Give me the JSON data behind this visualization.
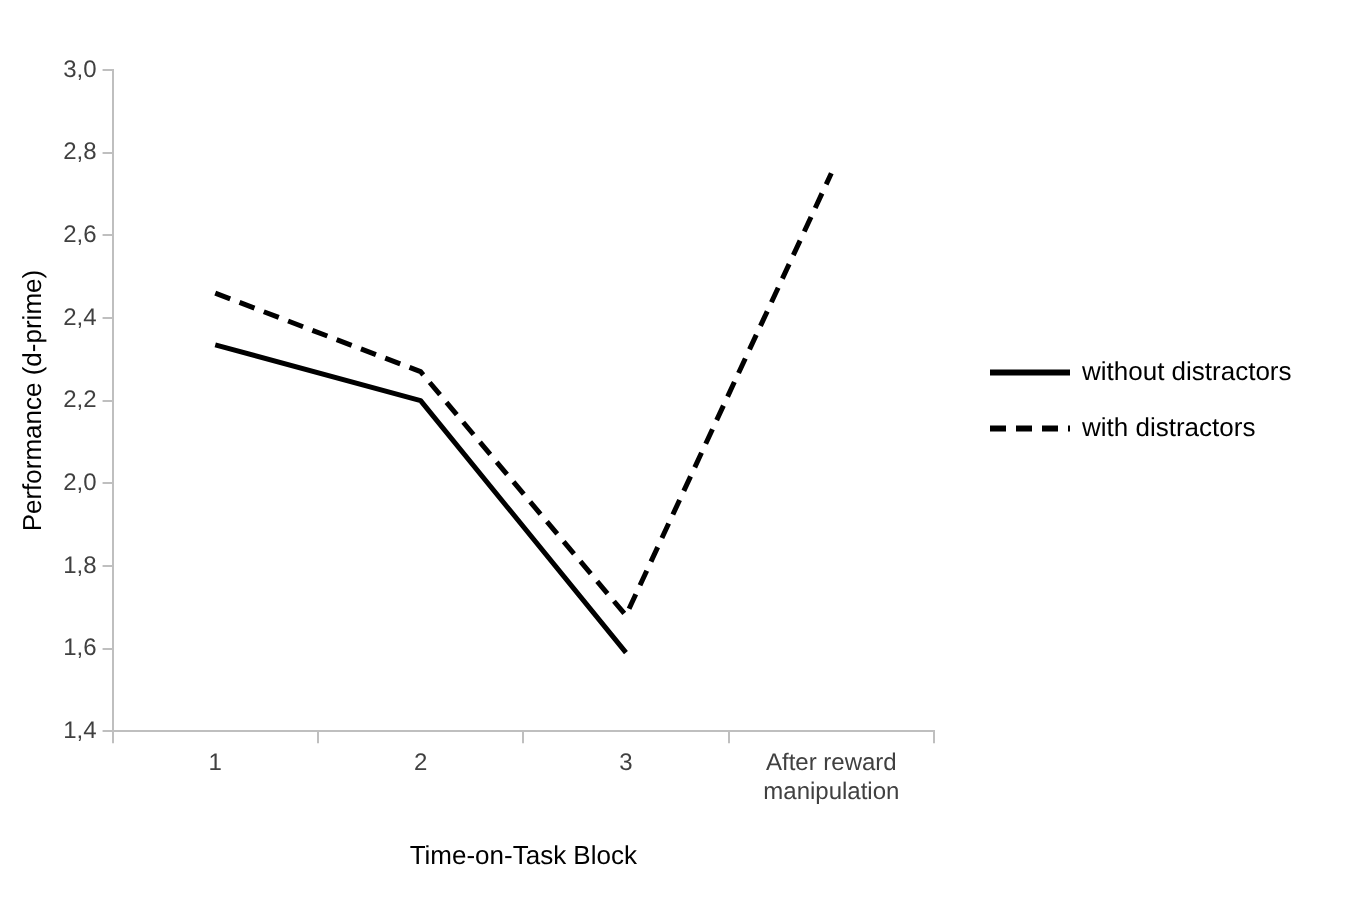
{
  "chart_data": {
    "type": "line",
    "xlabel": "Time-on-Task Block",
    "ylabel": "Performance (d-prime)",
    "categories": [
      "1",
      "2",
      "3",
      "After reward manipulation"
    ],
    "series": [
      {
        "name": "without distractors",
        "color": "#000000",
        "line_style": "solid",
        "values": [
          2.335,
          2.2,
          1.59,
          null
        ]
      },
      {
        "name": "with distractors",
        "color": "#000000",
        "line_style": "dashed",
        "values": [
          2.46,
          2.27,
          1.68,
          2.75
        ]
      }
    ],
    "ylim": [
      1.4,
      3.0
    ],
    "yticks": [
      {
        "value": 1.4,
        "label": "1,4"
      },
      {
        "value": 1.6,
        "label": "1,6"
      },
      {
        "value": 1.8,
        "label": "1,8"
      },
      {
        "value": 2.0,
        "label": "2,0"
      },
      {
        "value": 2.2,
        "label": "2,2"
      },
      {
        "value": 2.4,
        "label": "2,4"
      },
      {
        "value": 2.6,
        "label": "2,6"
      },
      {
        "value": 2.8,
        "label": "2,8"
      },
      {
        "value": 3.0,
        "label": "3,0"
      }
    ],
    "grid": false,
    "legend": "right",
    "marker": "none"
  }
}
